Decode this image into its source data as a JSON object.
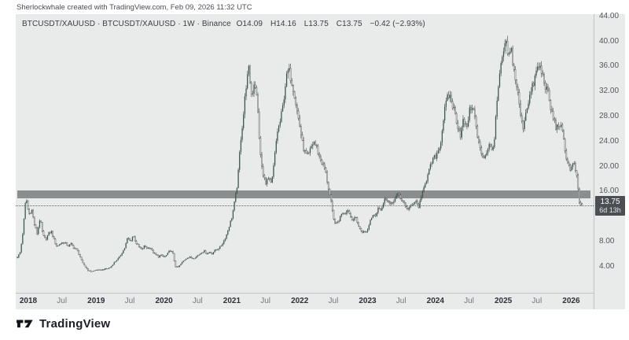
{
  "attribution": "Sherlockwhale created with TradingView.com, Feb 09, 2026 11:32 UTC",
  "legend": {
    "title": "BTCUSDT/XAUUSD · BTCUSDT/XAUUSD · 1W · Binance",
    "open": "O14.09",
    "high": "H14.16",
    "low": "L13.75",
    "close": "C13.75",
    "change": "−0.42 (−2.93%)"
  },
  "price_axis": {
    "ticks": [
      {
        "label": "44.00",
        "value": 44
      },
      {
        "label": "40.00",
        "value": 40
      },
      {
        "label": "36.00",
        "value": 36
      },
      {
        "label": "32.00",
        "value": 32
      },
      {
        "label": "28.00",
        "value": 28
      },
      {
        "label": "24.00",
        "value": 24
      },
      {
        "label": "20.00",
        "value": 20
      },
      {
        "label": "16.00",
        "value": 16
      },
      {
        "label": "8.00",
        "value": 8
      },
      {
        "label": "4.00",
        "value": 4
      }
    ],
    "last_price_label": "13.75",
    "countdown": "6d 13h"
  },
  "time_axis": {
    "labels": [
      {
        "text": "2018",
        "value": 2018,
        "type": "year"
      },
      {
        "text": "Jul",
        "value": 2018.495,
        "type": "month"
      },
      {
        "text": "2019",
        "value": 2019,
        "type": "year"
      },
      {
        "text": "Jul",
        "value": 2019.495,
        "type": "month"
      },
      {
        "text": "2020",
        "value": 2020,
        "type": "year"
      },
      {
        "text": "Jul",
        "value": 2020.495,
        "type": "month"
      },
      {
        "text": "2021",
        "value": 2021,
        "type": "year"
      },
      {
        "text": "Jul",
        "value": 2021.495,
        "type": "month"
      },
      {
        "text": "2022",
        "value": 2022,
        "type": "year"
      },
      {
        "text": "Jul",
        "value": 2022.495,
        "type": "month"
      },
      {
        "text": "2023",
        "value": 2023,
        "type": "year"
      },
      {
        "text": "Jul",
        "value": 2023.495,
        "type": "month"
      },
      {
        "text": "2024",
        "value": 2024,
        "type": "year"
      },
      {
        "text": "Jul",
        "value": 2024.495,
        "type": "month"
      },
      {
        "text": "2025",
        "value": 2025,
        "type": "year"
      },
      {
        "text": "Jul",
        "value": 2025.495,
        "type": "month"
      },
      {
        "text": "2026",
        "value": 2026,
        "type": "year"
      }
    ]
  },
  "footer": {
    "brand": "TradingView"
  },
  "colors": {
    "panel_bg": "#e9eaea",
    "up": "#3a5948",
    "down_fill": "#dcdedd",
    "down_stroke": "#4d5154",
    "wick": "#3f4447",
    "band": "#8b8e8f",
    "badge_bg": "#4b4f53",
    "axis_text": "#54575e"
  },
  "chart_data": {
    "type": "candlestick",
    "series_name": "BTCUSDT/XAUUSD",
    "interval": "1W",
    "exchange": "Binance",
    "x_start": 2017.84,
    "x_end": 2026.16,
    "price_range_visible": [
      0,
      44.6
    ],
    "y_tick_values": [
      44,
      40,
      36,
      32,
      28,
      24,
      20,
      16,
      8,
      4
    ],
    "band": {
      "type": "horizontal-zone",
      "price_from": 14.9,
      "price_to": 16.16
    },
    "current_price": 13.75,
    "last_bar": {
      "open": 14.09,
      "high": 14.16,
      "low": 13.75,
      "close": 13.75
    },
    "close_keyframes": [
      5.5,
      6.3,
      9.8,
      15.2,
      12.3,
      13.2,
      10.8,
      9.2,
      11.8,
      9.0,
      8.3,
      9.3,
      9.6,
      8.2,
      7.2,
      7.6,
      7.9,
      7.7,
      7.3,
      7.6,
      7.0,
      6.7,
      5.8,
      4.6,
      4.0,
      3.4,
      3.2,
      3.3,
      3.5,
      3.4,
      3.5,
      3.6,
      3.7,
      3.9,
      4.5,
      5.0,
      5.4,
      6.2,
      7.0,
      8.6,
      8.0,
      9.0,
      7.8,
      7.2,
      6.7,
      7.3,
      6.9,
      7.1,
      6.3,
      5.9,
      5.6,
      5.8,
      5.5,
      5.9,
      6.6,
      6.2,
      4.0,
      3.9,
      4.5,
      5.0,
      5.4,
      5.5,
      5.3,
      5.5,
      5.8,
      6.2,
      6.5,
      6.1,
      6.3,
      6.1,
      6.6,
      6.8,
      7.2,
      8.0,
      9.0,
      10.5,
      12.0,
      14.5,
      17.5,
      24.0,
      28.0,
      33.0,
      35.5,
      31.0,
      34.0,
      30.0,
      22.0,
      18.5,
      17.5,
      18.0,
      17.0,
      21.0,
      25.5,
      27.0,
      29.5,
      33.5,
      35.5,
      34.0,
      32.0,
      29.0,
      26.5,
      23.5,
      22.0,
      21.5,
      23.0,
      24.0,
      23.0,
      21.5,
      20.5,
      19.5,
      17.0,
      14.5,
      11.5,
      10.8,
      11.5,
      12.8,
      12.5,
      13.2,
      12.0,
      11.5,
      11.8,
      10.2,
      9.6,
      9.5,
      9.8,
      11.5,
      12.5,
      12.2,
      13.5,
      13.2,
      14.5,
      14.8,
      13.8,
      14.2,
      15.2,
      15.5,
      14.8,
      14.2,
      13.2,
      13.5,
      13.8,
      14.5,
      13.5,
      14.8,
      17.0,
      18.0,
      19.5,
      21.0,
      21.5,
      22.5,
      24.0,
      28.0,
      30.5,
      31.5,
      30.0,
      28.5,
      26.5,
      25.0,
      27.5,
      26.0,
      28.5,
      30.0,
      28.0,
      24.5,
      22.5,
      21.5,
      22.0,
      23.5,
      22.5,
      24.5,
      31.0,
      35.0,
      38.0,
      39.5,
      37.5,
      38.5,
      35.0,
      32.5,
      29.0,
      26.0,
      28.5,
      30.5,
      32.0,
      33.5,
      35.5,
      36.0,
      34.5,
      33.0,
      31.5,
      29.0,
      27.5,
      26.0,
      27.0,
      25.5,
      22.5,
      20.5,
      19.5,
      20.5,
      19.0,
      14.2,
      13.75
    ]
  }
}
